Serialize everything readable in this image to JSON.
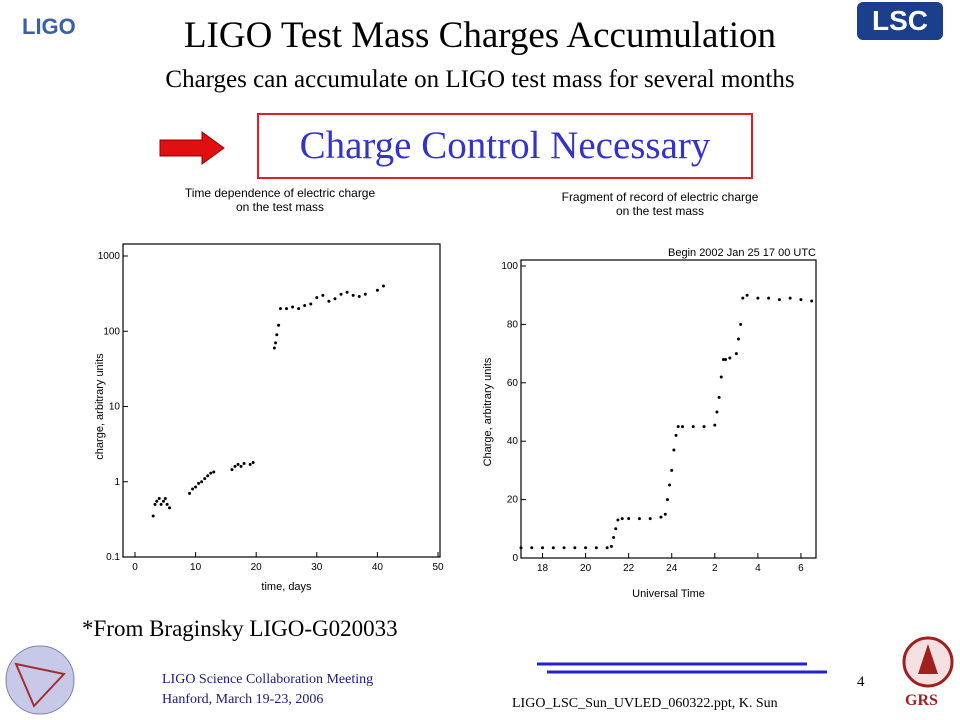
{
  "header": {
    "title": "LIGO Test Mass Charges Accumulation",
    "subtitle": "Charges can accumulate on LIGO test mass for several months",
    "logo_left": "LIGO",
    "logo_right": "LSC"
  },
  "callout": "Charge Control Necessary",
  "chart_data": [
    {
      "type": "scatter",
      "title": "Time dependence of electric charge\non the test mass",
      "x_label": "time, days",
      "y_label": "charge, arbitrary units",
      "color": "#000000",
      "log_y": true,
      "xlim": [
        0,
        50
      ],
      "xticks": [
        0,
        10,
        20,
        30,
        40,
        50
      ],
      "ylim": [
        0.1,
        1000
      ],
      "yticks": [
        0.1,
        1,
        10,
        100,
        1000
      ],
      "x": [
        3,
        3.3,
        3.6,
        4,
        4.3,
        4.7,
        5,
        5.3,
        5.7,
        9,
        9.5,
        10,
        10.5,
        11,
        11.5,
        12,
        12.5,
        13,
        16,
        16.5,
        17,
        17.5,
        18,
        19,
        19.5,
        23,
        23.2,
        23.4,
        23.7,
        24,
        25,
        26,
        27,
        28,
        29,
        30,
        31,
        32,
        33,
        34,
        35,
        36,
        37,
        38,
        40,
        41
      ],
      "values": [
        0.35,
        0.5,
        0.55,
        0.6,
        0.5,
        0.55,
        0.6,
        0.5,
        0.45,
        0.7,
        0.8,
        0.85,
        0.95,
        1.0,
        1.1,
        1.2,
        1.3,
        1.35,
        1.45,
        1.6,
        1.7,
        1.6,
        1.75,
        1.7,
        1.8,
        60,
        70,
        90,
        120,
        200,
        200,
        210,
        200,
        220,
        230,
        280,
        300,
        250,
        270,
        310,
        330,
        300,
        290,
        310,
        350,
        400
      ]
    },
    {
      "type": "scatter",
      "title": "Fragment of record of electric charge\non the test mass",
      "annotation": "Begin 2002 Jan 25 17 00 UTC",
      "x_label": "Universal Time",
      "y_label": "Charge, arbitrary units",
      "color": "#000000",
      "log_y": false,
      "xlim": [
        17,
        30.7
      ],
      "xticks": [
        18,
        20,
        22,
        24,
        {
          "value": 26,
          "label": "2"
        },
        {
          "value": 28,
          "label": "4"
        },
        {
          "value": 30,
          "label": "6"
        }
      ],
      "ylim": [
        0,
        100
      ],
      "yticks": [
        0,
        20,
        40,
        60,
        80,
        100
      ],
      "x": [
        17,
        17.5,
        18,
        18.5,
        19,
        19.5,
        20,
        20.5,
        21,
        21.2,
        21.3,
        21.4,
        21.5,
        21.7,
        22,
        22.5,
        23,
        23.5,
        23.7,
        23.8,
        23.9,
        24,
        24.1,
        24.2,
        24.3,
        24.5,
        25,
        25.5,
        26,
        26.1,
        26.2,
        26.3,
        26.4,
        26.5,
        26.7,
        27,
        27.1,
        27.2,
        27.3,
        27.5,
        28,
        28.5,
        29,
        29.5,
        30,
        30.5
      ],
      "values": [
        3.5,
        3.5,
        3.5,
        3.5,
        3.5,
        3.5,
        3.5,
        3.5,
        3.5,
        4,
        7,
        10,
        13,
        13.5,
        13.5,
        13.5,
        13.5,
        14,
        15,
        20,
        25,
        30,
        37,
        42,
        45,
        45,
        45,
        45,
        45.5,
        50,
        55,
        62,
        68,
        68,
        68.5,
        70,
        75,
        80,
        89,
        90,
        89,
        89,
        88.5,
        89,
        88.5,
        88
      ]
    }
  ],
  "source": "*From Braginsky LIGO-G020033",
  "footer": {
    "meeting": "LIGO Science Collaboration Meeting",
    "place": "Hanford, March 19-23, 2006",
    "page": "4",
    "file": "LIGO_LSC_Sun_UVLED_060322.ppt, K. Sun",
    "logo": "GRS"
  }
}
